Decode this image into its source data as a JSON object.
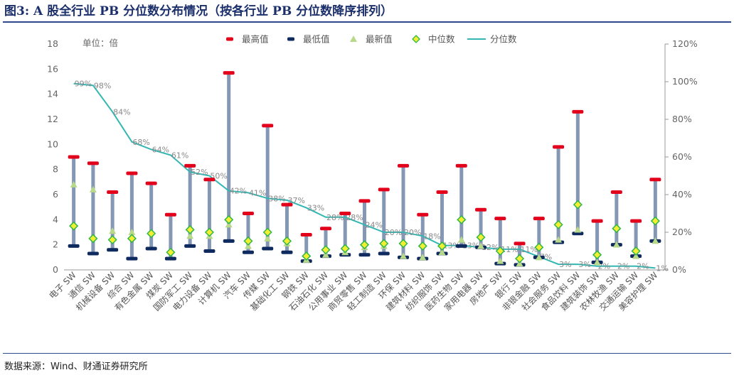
{
  "title": "图3: A 股全行业 PB 分位数分布情况（按各行业 PB 分位数降序排列）",
  "source": "数据来源：Wind、财通证券研究所",
  "chart_data": {
    "type": "boxplot-line",
    "unit_label": "单位：倍",
    "legend": [
      "最高值",
      "最低值",
      "最新值",
      "中位数",
      "分位数"
    ],
    "colors": {
      "max": "#e3001b",
      "min": "#0f2a5e",
      "latest": "#b9d98a",
      "median_fill": "#f2ee32",
      "median_stroke": "#2fb64a",
      "range": "#8497b4",
      "line": "#34b7b2"
    },
    "ylim_left": [
      0,
      18
    ],
    "yticks_left": [
      "0",
      "2",
      "4",
      "6",
      "8",
      "10",
      "12",
      "14",
      "16",
      "18"
    ],
    "ylim_right": [
      0,
      120
    ],
    "yticks_right": [
      "0%",
      "20%",
      "40%",
      "60%",
      "80%",
      "100%",
      "120%"
    ],
    "categories": [
      "电子 SW",
      "通信 SW",
      "机械设备 SW",
      "综合 SW",
      "有色金属 SW",
      "煤炭 SW",
      "国防军工 SW",
      "电力设备 SW",
      "计算机 SW",
      "汽车 SW",
      "传媒 SW",
      "基础化工 SW",
      "钢铁 SW",
      "石油石化 SW",
      "公用事业 SW",
      "商贸零售 SW",
      "轻工制造 SW",
      "环保 SW",
      "建筑材料 SW",
      "纺织服饰 SW",
      "医药生物 SW",
      "家用电器 SW",
      "房地产 SW",
      "银行 SW",
      "非银金融 SW",
      "社会服务 SW",
      "食品饮料 SW",
      "建筑装饰 SW",
      "农林牧渔 SW",
      "交通运输 SW",
      "美容护理 SW"
    ],
    "max": [
      9.0,
      8.5,
      6.2,
      7.7,
      6.9,
      4.4,
      8.3,
      7.2,
      15.7,
      4.5,
      11.5,
      5.2,
      2.8,
      3.3,
      4.5,
      5.5,
      6.4,
      8.3,
      4.4,
      6.2,
      8.3,
      4.8,
      4.1,
      2.1,
      4.1,
      9.8,
      12.6,
      3.9,
      6.2,
      3.9,
      7.2
    ],
    "min": [
      1.9,
      1.3,
      1.6,
      0.9,
      1.7,
      0.9,
      1.9,
      1.5,
      2.3,
      1.4,
      1.7,
      1.4,
      0.7,
      1.1,
      1.2,
      1.2,
      1.3,
      1.0,
      0.9,
      1.3,
      1.9,
      1.8,
      0.5,
      0.4,
      1.0,
      2.2,
      2.9,
      0.6,
      2.0,
      1.1,
      2.3
    ],
    "latest": [
      6.8,
      6.4,
      3.1,
      3.0,
      3.0,
      1.5,
      2.7,
      2.7,
      3.6,
      1.9,
      2.5,
      2.1,
      0.8,
      1.2,
      1.4,
      1.8,
      1.9,
      1.1,
      1.0,
      1.4,
      2.4,
      1.9,
      0.7,
      0.5,
      1.0,
      2.4,
      3.2,
      0.6,
      2.0,
      1.1,
      2.3
    ],
    "median": [
      3.5,
      2.5,
      2.4,
      2.5,
      2.9,
      1.4,
      3.2,
      3.0,
      4.0,
      2.3,
      3.0,
      2.3,
      1.1,
      1.6,
      1.7,
      2.0,
      2.1,
      2.1,
      1.9,
      1.9,
      4.0,
      2.6,
      1.5,
      0.9,
      1.8,
      3.6,
      5.2,
      1.2,
      3.3,
      1.5,
      3.9
    ],
    "percentile": [
      99,
      98,
      84,
      68,
      64,
      61,
      52,
      50,
      42,
      41,
      38,
      37,
      33,
      28,
      28,
      24,
      20,
      20,
      18,
      13,
      13,
      12,
      11,
      11,
      7,
      3,
      3,
      2,
      2,
      2,
      1
    ],
    "percentile_labels": [
      "99%",
      "98%",
      "84%",
      "68%",
      "64%",
      "61%",
      "52%",
      "50%",
      "42%",
      "41%",
      "38%",
      "37%",
      "33%",
      "28%",
      "28%",
      "24%",
      "20%",
      "20%",
      "18%",
      "13%",
      "13%",
      "12%",
      "11%",
      "11%",
      "7%",
      "3%",
      "3%",
      "2%",
      "2%",
      "2%",
      "1%"
    ]
  }
}
